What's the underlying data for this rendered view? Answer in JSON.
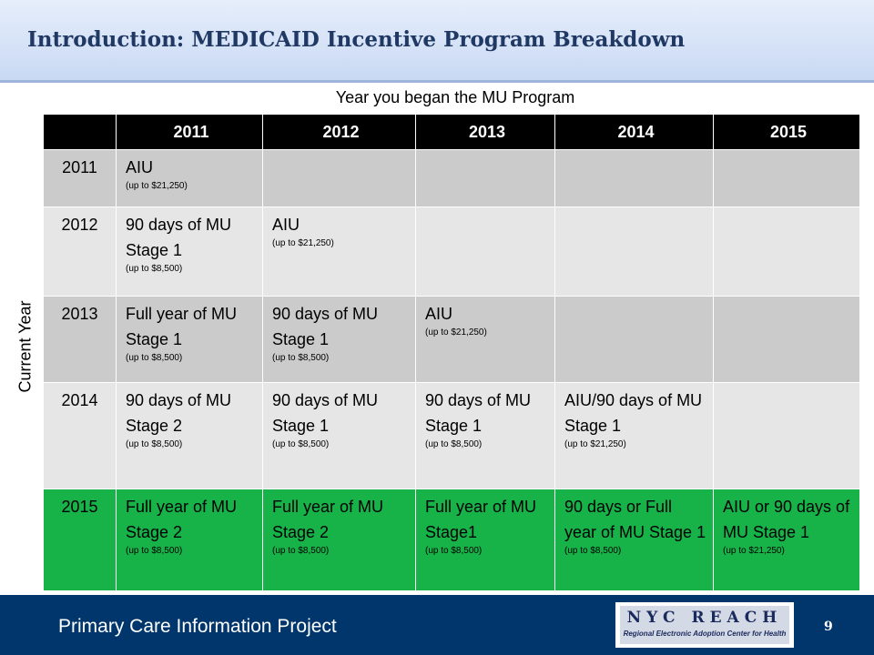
{
  "slide": {
    "title": "Introduction: MEDICAID Incentive Program Breakdown",
    "column_heading": "Year you began the MU Program",
    "row_heading": "Current Year"
  },
  "table": {
    "header": [
      "",
      "2011",
      "2012",
      "2013",
      "2014",
      "2015"
    ],
    "rows": [
      {
        "year": "2011",
        "cells": [
          {
            "main": "AIU",
            "sub": "(up to $21,250)"
          },
          {
            "main": "",
            "sub": ""
          },
          {
            "main": "",
            "sub": ""
          },
          {
            "main": "",
            "sub": ""
          },
          {
            "main": "",
            "sub": ""
          }
        ]
      },
      {
        "year": "2012",
        "cells": [
          {
            "main": "90 days of MU Stage 1",
            "sub": "(up to $8,500)"
          },
          {
            "main": "AIU",
            "sub": "(up to $21,250)"
          },
          {
            "main": "",
            "sub": ""
          },
          {
            "main": "",
            "sub": ""
          },
          {
            "main": "",
            "sub": ""
          }
        ]
      },
      {
        "year": "2013",
        "cells": [
          {
            "main": "Full year of MU Stage 1",
            "sub": "(up to $8,500)"
          },
          {
            "main": "90 days of MU Stage 1",
            "sub": "(up to $8,500)"
          },
          {
            "main": "AIU",
            "sub": "(up to $21,250)"
          },
          {
            "main": "",
            "sub": ""
          },
          {
            "main": "",
            "sub": ""
          }
        ]
      },
      {
        "year": "2014",
        "cells": [
          {
            "main": "90 days of MU Stage 2",
            "sub": "(up to $8,500)"
          },
          {
            "main": "90 days of MU Stage 1",
            "sub": "(up to $8,500)"
          },
          {
            "main": "90 days of MU Stage 1",
            "sub": "(up to $8,500)"
          },
          {
            "main": "AIU/90 days of MU Stage 1",
            "sub": "(up to $21,250)"
          },
          {
            "main": "",
            "sub": ""
          }
        ]
      },
      {
        "year": "2015",
        "cells": [
          {
            "main": "Full year of MU Stage 2",
            "sub": "(up to $8,500)"
          },
          {
            "main": "Full year of MU Stage 2",
            "sub": "(up to $8,500)"
          },
          {
            "main": "Full year of MU Stage1",
            "sub": "(up to $8,500)"
          },
          {
            "main": "90 days or Full year of MU Stage 1",
            "sub": "(up to $8,500)"
          },
          {
            "main": "AIU or 90 days of MU Stage 1",
            "sub": "(up to $21,250)"
          }
        ]
      }
    ]
  },
  "footer": {
    "text": "Primary Care Information Project",
    "page_number": "9",
    "logo_name": "NYC REACH",
    "logo_tagline": "Regional Electronic Adoption Center for Health"
  },
  "colors": {
    "header_row": "#000000",
    "row_dark": "#cbcbcb",
    "row_light": "#e6e6e6",
    "row_highlight": "#17b349",
    "footer": "#00366b"
  }
}
